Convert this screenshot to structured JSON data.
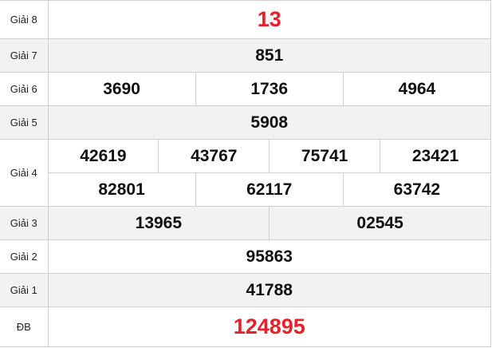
{
  "prizes": {
    "g8": {
      "label": "Giải 8",
      "numbers": [
        "13"
      ]
    },
    "g7": {
      "label": "Giải 7",
      "numbers": [
        "851"
      ]
    },
    "g6": {
      "label": "Giải 6",
      "numbers": [
        "3690",
        "1736",
        "4964"
      ]
    },
    "g5": {
      "label": "Giải 5",
      "numbers": [
        "5908"
      ]
    },
    "g4": {
      "label": "Giải 4",
      "numbers": [
        "42619",
        "43767",
        "75741",
        "23421",
        "82801",
        "62117",
        "63742"
      ]
    },
    "g3": {
      "label": "Giải 3",
      "numbers": [
        "13965",
        "02545"
      ]
    },
    "g2": {
      "label": "Giải 2",
      "numbers": [
        "95863"
      ]
    },
    "g1": {
      "label": "Giải 1",
      "numbers": [
        "41788"
      ]
    },
    "db": {
      "label": "ĐB",
      "numbers": [
        "124895"
      ]
    }
  },
  "colors": {
    "highlight": "#e8202a",
    "alt_row": "#f2f2f2",
    "border": "#cfcfcf"
  }
}
